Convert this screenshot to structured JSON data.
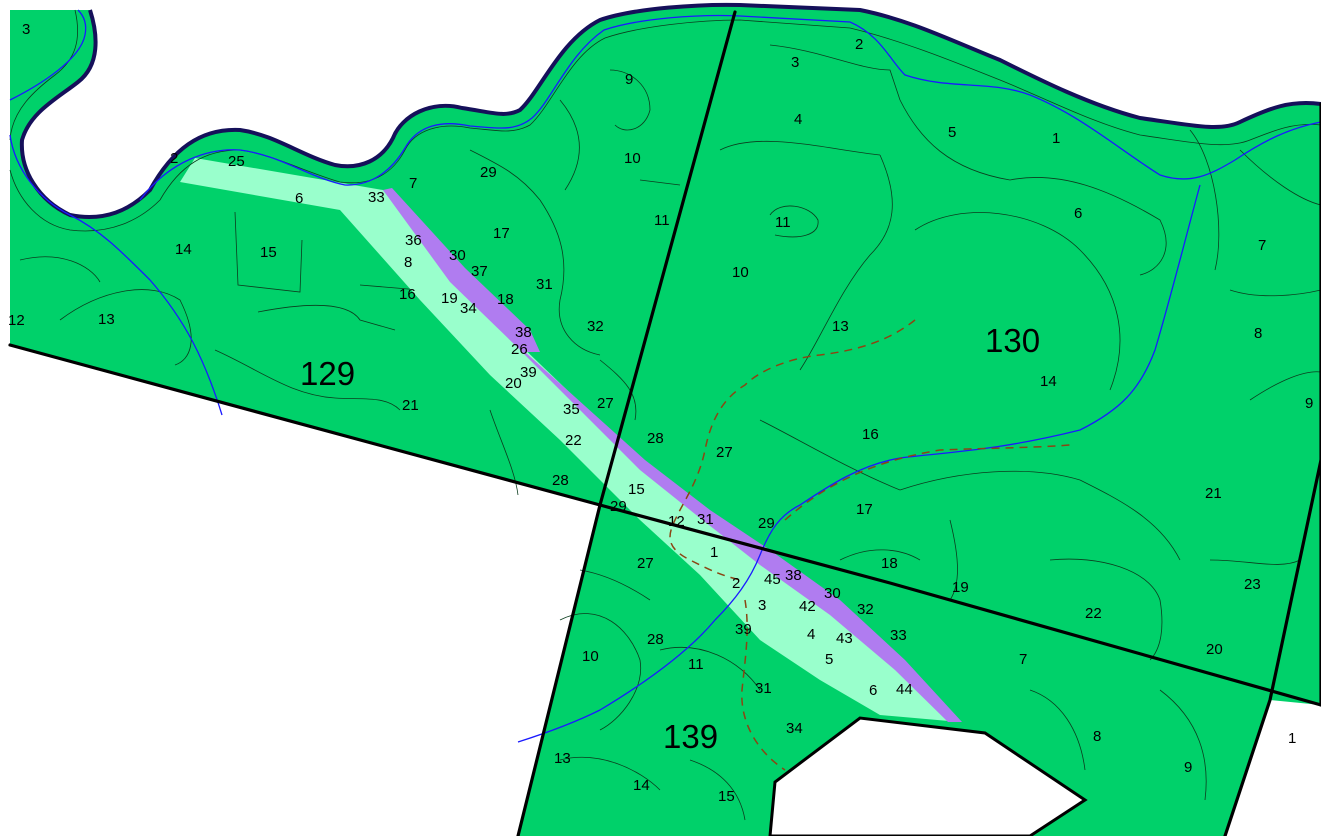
{
  "colors": {
    "forest": "#00d16a",
    "strip": "#99ffcc",
    "strip_edge": "#b07cf0",
    "boundary": "#000000",
    "coast": "#15105a",
    "stream": "#1a1aff",
    "trail": "#8b4513",
    "inner": "#0b3d1e",
    "background": "#ffffff"
  },
  "blocks": [
    {
      "id": "129",
      "label": "129"
    },
    {
      "id": "130",
      "label": "130"
    },
    {
      "id": "139",
      "label": "139"
    }
  ],
  "subcompartments": {
    "b129": [
      "3",
      "2",
      "25",
      "6",
      "33",
      "7",
      "29",
      "14",
      "15",
      "36",
      "8",
      "16",
      "30",
      "37",
      "19",
      "34",
      "17",
      "18",
      "31",
      "38",
      "26",
      "39",
      "20",
      "35",
      "22",
      "28",
      "12",
      "13",
      "21",
      "9",
      "10",
      "11",
      "32",
      "27"
    ],
    "b130": [
      "2",
      "3",
      "4",
      "5",
      "1",
      "6",
      "11",
      "10",
      "7",
      "13",
      "8",
      "14",
      "9",
      "16",
      "28",
      "27",
      "17",
      "21",
      "29",
      "18",
      "19",
      "23",
      "22",
      "20",
      "12",
      "31",
      "15"
    ],
    "b139": [
      "29",
      "1",
      "27",
      "2",
      "45",
      "38",
      "30",
      "32",
      "3",
      "42",
      "39",
      "4",
      "43",
      "33",
      "10",
      "28",
      "11",
      "5",
      "7",
      "31",
      "6",
      "44",
      "34",
      "13",
      "14",
      "15",
      "8",
      "9",
      "1"
    ]
  }
}
